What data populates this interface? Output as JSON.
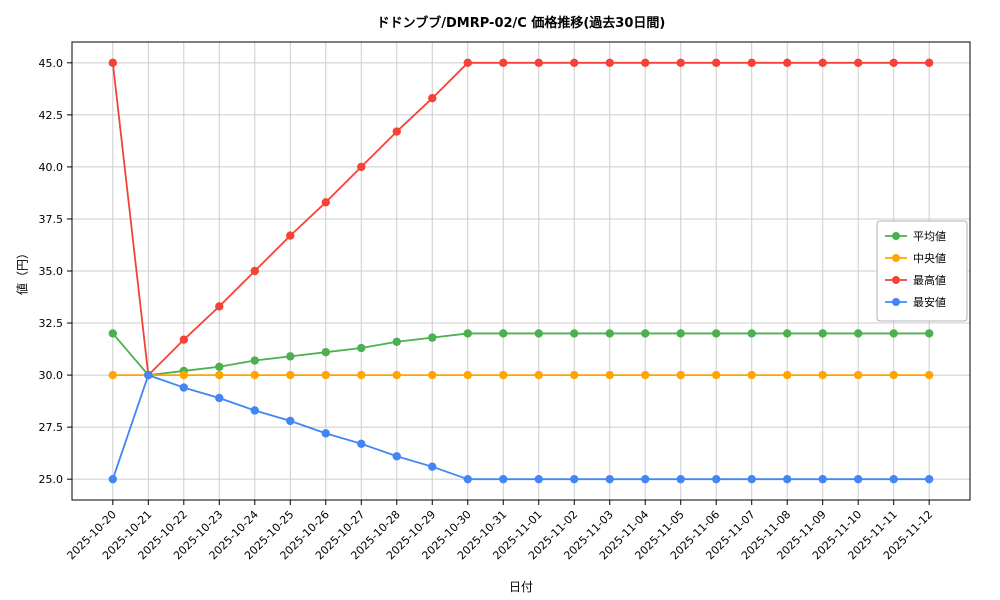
{
  "chart_data": {
    "type": "line",
    "title": "ドドンブブ/DMRP-02/C 価格推移(過去30日間)",
    "xlabel": "日付",
    "ylabel": "値（円）",
    "grid": true,
    "legend_position": "right",
    "ylim": [
      24,
      46
    ],
    "yticks": [
      25.0,
      27.5,
      30.0,
      32.5,
      35.0,
      37.5,
      40.0,
      42.5,
      45.0
    ],
    "categories": [
      "2025-10-20",
      "2025-10-21",
      "2025-10-22",
      "2025-10-23",
      "2025-10-24",
      "2025-10-25",
      "2025-10-26",
      "2025-10-27",
      "2025-10-28",
      "2025-10-29",
      "2025-10-30",
      "2025-10-31",
      "2025-11-01",
      "2025-11-02",
      "2025-11-03",
      "2025-11-04",
      "2025-11-05",
      "2025-11-06",
      "2025-11-07",
      "2025-11-08",
      "2025-11-09",
      "2025-11-10",
      "2025-11-11",
      "2025-11-12"
    ],
    "series": [
      {
        "name": "平均値",
        "color": "#4caf50",
        "values": [
          32,
          30,
          30.2,
          30.4,
          30.7,
          30.9,
          31.1,
          31.3,
          31.6,
          31.8,
          32,
          32,
          32,
          32,
          32,
          32,
          32,
          32,
          32,
          32,
          32,
          32,
          32,
          32
        ]
      },
      {
        "name": "中央値",
        "color": "#ffa500",
        "values": [
          30,
          30,
          30,
          30,
          30,
          30,
          30,
          30,
          30,
          30,
          30,
          30,
          30,
          30,
          30,
          30,
          30,
          30,
          30,
          30,
          30,
          30,
          30,
          30
        ]
      },
      {
        "name": "最高値",
        "color": "#f44336",
        "values": [
          45,
          30,
          31.7,
          33.3,
          35,
          36.7,
          38.3,
          40,
          41.7,
          43.3,
          45,
          45,
          45,
          45,
          45,
          45,
          45,
          45,
          45,
          45,
          45,
          45,
          45,
          45
        ]
      },
      {
        "name": "最安値",
        "color": "#4285f4",
        "values": [
          25,
          30,
          29.4,
          28.9,
          28.3,
          27.8,
          27.2,
          26.7,
          26.1,
          25.6,
          25,
          25,
          25,
          25,
          25,
          25,
          25,
          25,
          25,
          25,
          25,
          25,
          25,
          25
        ]
      }
    ],
    "style": {
      "grid_color": "#cccccc",
      "axis_color": "#000000",
      "legend_border_color": "#b0b0b0",
      "background": "#ffffff"
    }
  }
}
